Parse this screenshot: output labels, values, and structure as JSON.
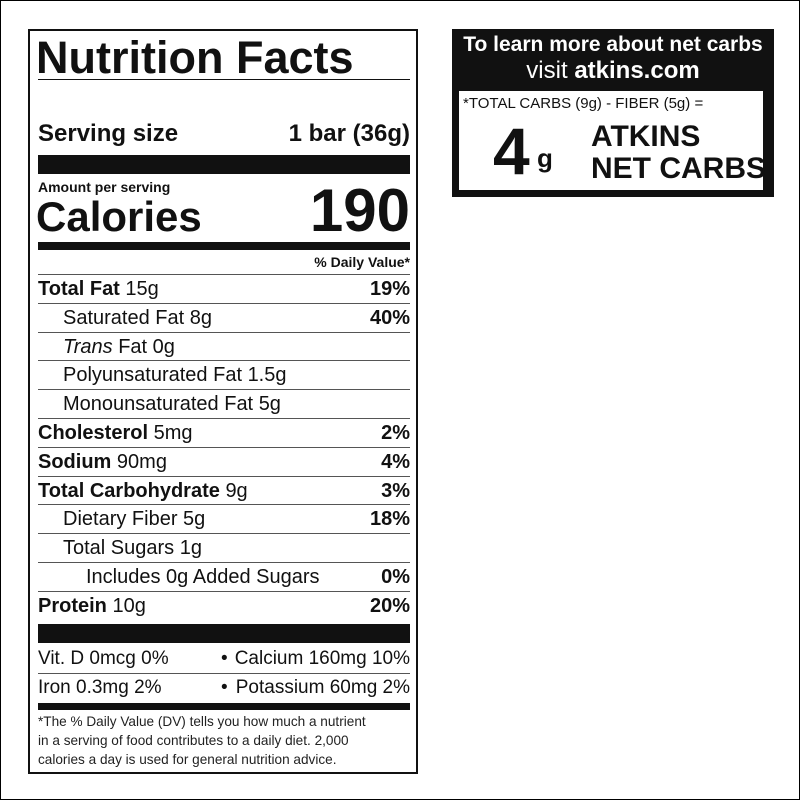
{
  "label": {
    "title": "Nutrition Facts",
    "serving_label": "Serving size",
    "serving_value": "1 bar (36g)",
    "amount_per_serving": "Amount per serving",
    "calories_label": "Calories",
    "calories_value": "190",
    "dv_header": "% Daily Value*",
    "nutrients": [
      {
        "name": "Total Fat",
        "amount": "15g",
        "dv": "19%",
        "level": 0
      },
      {
        "name": "Saturated Fat",
        "amount": "8g",
        "dv": "40%",
        "level": 1
      },
      {
        "italic_prefix": "Trans",
        "name": "Fat",
        "amount": "0g",
        "level": 1
      },
      {
        "name": "Polyunsaturated Fat",
        "amount": "1.5g",
        "level": 1
      },
      {
        "name": "Monounsaturated Fat",
        "amount": "5g",
        "level": 1
      },
      {
        "name": "Cholesterol",
        "amount": "5mg",
        "dv": "2%",
        "level": 0
      },
      {
        "name": "Sodium",
        "amount": "90mg",
        "dv": "4%",
        "level": 0
      },
      {
        "name": "Total Carbohydrate",
        "amount": "9g",
        "dv": "3%",
        "level": 0
      },
      {
        "name": "Dietary Fiber",
        "amount": "5g",
        "dv": "18%",
        "level": 1
      },
      {
        "name": "Total Sugars",
        "amount": "1g",
        "level": 1
      },
      {
        "name": "Includes 0g Added Sugars",
        "dv": "0%",
        "level": 2
      },
      {
        "name": "Protein",
        "amount": "10g",
        "dv": "20%",
        "level": 0
      }
    ],
    "vitamins": [
      [
        "Vit. D 0mcg 0%",
        "Calcium 160mg 10%"
      ],
      [
        "Iron 0.3mg 2%",
        "Potassium 60mg 2%"
      ]
    ],
    "footnote": [
      "*The % Daily Value (DV) tells you how much a nutrient",
      "in a serving of food contributes to a daily diet. 2,000",
      "calories a day is used for general nutrition advice."
    ]
  },
  "promo": {
    "line1": "To learn more about net carbs",
    "visit": "visit",
    "site": "atkins.com",
    "formula": "*TOTAL CARBS (9g) - FIBER (5g) =",
    "number": "4",
    "unit": "g",
    "brand": "ATKINS",
    "net_carbs": "NET CARBS"
  }
}
